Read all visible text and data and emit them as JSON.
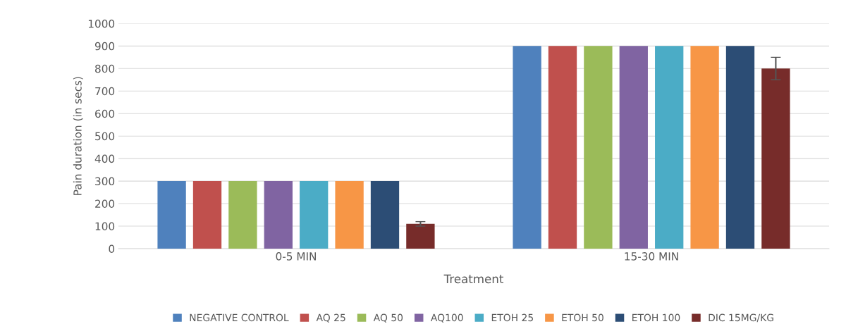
{
  "chart_data": {
    "type": "bar",
    "xlabel": "Treatment",
    "ylabel": "Pain duration (in secs)",
    "categories": [
      "0-5 MIN",
      "15-30 MIN"
    ],
    "series": [
      {
        "name": "NEGATIVE CONTROL",
        "color": "#4f81bd",
        "values": [
          300,
          900
        ]
      },
      {
        "name": "AQ 25",
        "color": "#c0504d",
        "values": [
          300,
          900
        ]
      },
      {
        "name": "AQ 50",
        "color": "#9bbb59",
        "values": [
          300,
          900
        ]
      },
      {
        "name": "AQ100",
        "color": "#8064a2",
        "values": [
          300,
          900
        ]
      },
      {
        "name": "ETOH 25",
        "color": "#4bacc6",
        "values": [
          300,
          900
        ]
      },
      {
        "name": "ETOH 50",
        "color": "#f79646",
        "values": [
          300,
          900
        ]
      },
      {
        "name": "ETOH 100",
        "color": "#2c4d75",
        "values": [
          300,
          900
        ]
      },
      {
        "name": "DIC 15MG/KG",
        "color": "#772c2a",
        "values": [
          110,
          800
        ],
        "errors": [
          10,
          50
        ]
      }
    ],
    "ylim": [
      0,
      1000
    ],
    "yticks": [
      0,
      100,
      200,
      300,
      400,
      500,
      600,
      700,
      800,
      900,
      1000
    ],
    "grid": "y",
    "legend": "bottom"
  }
}
